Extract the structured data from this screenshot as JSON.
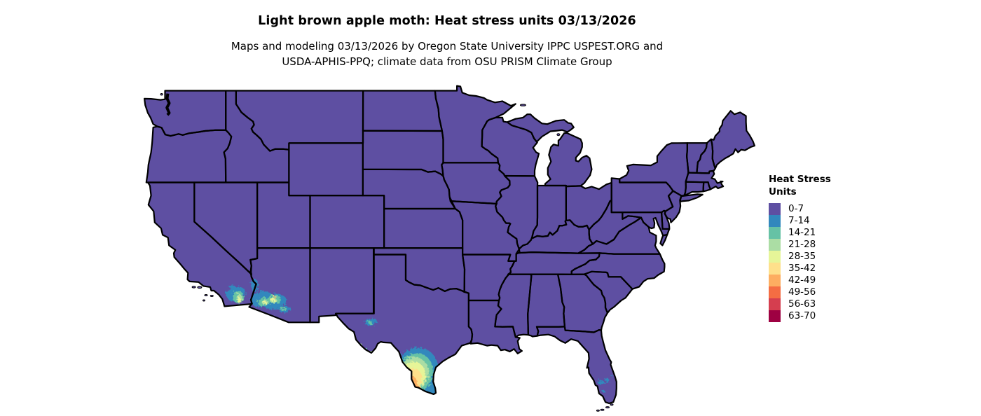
{
  "title": "Light brown apple moth: Heat stress units 03/13/2026",
  "subtitle": [
    "Maps and modeling 03/13/2026 by Oregon State University IPPC USPEST.ORG and",
    "USDA-APHIS-PPQ; climate data from OSU PRISM Climate Group"
  ],
  "legend": {
    "title_lines": [
      "Heat Stress",
      "Units"
    ],
    "items": [
      {
        "label": "0-7",
        "color": "#5e4fa2"
      },
      {
        "label": "7-14",
        "color": "#3288bd"
      },
      {
        "label": "14-21",
        "color": "#66c2a5"
      },
      {
        "label": "21-28",
        "color": "#abdda4"
      },
      {
        "label": "28-35",
        "color": "#e6f598"
      },
      {
        "label": "35-42",
        "color": "#fee08b"
      },
      {
        "label": "42-49",
        "color": "#fdae61"
      },
      {
        "label": "49-56",
        "color": "#f46d43"
      },
      {
        "label": "56-63",
        "color": "#d53e4f"
      },
      {
        "label": "63-70",
        "color": "#9e0142"
      }
    ]
  },
  "map": {
    "base_level_label": "0-7",
    "base_color": "#5e4fa2",
    "border_color": "#000000",
    "background": "#ffffff",
    "hotspots": [
      {
        "region": "se-california-low-desert",
        "level": 1,
        "lon": -116.05,
        "lat": 33.5,
        "rx": 14,
        "ry": 10,
        "rot": -20
      },
      {
        "region": "se-california-low-desert",
        "level": 1,
        "lon": -116.8,
        "lat": 33.6,
        "rx": 5,
        "ry": 3,
        "rot": 0
      },
      {
        "region": "se-california-low-desert",
        "level": 1,
        "lon": -116.45,
        "lat": 34.05,
        "rx": 4,
        "ry": 2.5,
        "rot": 0
      },
      {
        "region": "imperial-valley",
        "level": 2,
        "lon": -115.85,
        "lat": 33.25,
        "rx": 8,
        "ry": 9,
        "rot": -10
      },
      {
        "region": "imperial-valley",
        "level": 3,
        "lon": -115.75,
        "lat": 33.15,
        "rx": 4,
        "ry": 7,
        "rot": -8
      },
      {
        "region": "imperial-valley",
        "level": 4,
        "lon": -115.75,
        "lat": 33.0,
        "rx": 2.2,
        "ry": 4,
        "rot": 0
      },
      {
        "region": "southwest-arizona",
        "level": 1,
        "lon": -113.6,
        "lat": 33.1,
        "rx": 16,
        "ry": 11,
        "rot": -15
      },
      {
        "region": "south-central-arizona",
        "level": 1,
        "lon": -112.4,
        "lat": 32.9,
        "rx": 17,
        "ry": 11,
        "rot": -10
      },
      {
        "region": "lower-colorado-river",
        "level": 1,
        "lon": -114.3,
        "lat": 34.15,
        "rx": 5,
        "ry": 9,
        "rot": 0
      },
      {
        "region": "tucson-basin",
        "level": 1,
        "lon": -111.4,
        "lat": 32.3,
        "rx": 9,
        "ry": 4,
        "rot": -10
      },
      {
        "region": "southwest-arizona",
        "level": 2,
        "lon": -113.4,
        "lat": 32.9,
        "rx": 9,
        "ry": 6,
        "rot": -15
      },
      {
        "region": "south-central-arizona",
        "level": 2,
        "lon": -112.4,
        "lat": 33.1,
        "rx": 9,
        "ry": 6,
        "rot": 0
      },
      {
        "region": "tucson-basin",
        "level": 2,
        "lon": -111.6,
        "lat": 32.35,
        "rx": 5,
        "ry": 2.5,
        "rot": 0
      },
      {
        "region": "southwest-arizona",
        "level": 3,
        "lon": -113.3,
        "lat": 32.85,
        "rx": 5,
        "ry": 3.5,
        "rot": 0
      },
      {
        "region": "south-central-arizona",
        "level": 3,
        "lon": -112.5,
        "lat": 33.0,
        "rx": 5,
        "ry": 4,
        "rot": 0
      },
      {
        "region": "southwest-arizona",
        "level": 4,
        "lon": -113.3,
        "lat": 32.8,
        "rx": 2.5,
        "ry": 2,
        "rot": 0
      },
      {
        "region": "south-central-arizona",
        "level": 4,
        "lon": -112.6,
        "lat": 33.05,
        "rx": 3,
        "ry": 2.5,
        "rot": 0
      },
      {
        "region": "phoenix-core",
        "level": 5,
        "lon": -112.42,
        "lat": 33.3,
        "rx": 1.6,
        "ry": 2.2,
        "rot": 0
      },
      {
        "region": "phoenix-core",
        "level": 6,
        "lon": -112.42,
        "lat": 33.28,
        "rx": 1.1,
        "ry": 1.6,
        "rot": 0
      },
      {
        "region": "phoenix-core",
        "level": 7,
        "lon": -112.42,
        "lat": 33.22,
        "rx": 0.8,
        "ry": 1.0,
        "rot": 0
      },
      {
        "region": "south-texas",
        "level": 1,
        "lon": -98.9,
        "lat": 27.6,
        "rx": 30,
        "ry": 34,
        "rot": 12
      },
      {
        "region": "south-texas",
        "level": 1,
        "lon": -98.0,
        "lat": 26.5,
        "rx": 18,
        "ry": 14,
        "rot": 0
      },
      {
        "region": "south-texas",
        "level": 2,
        "lon": -99.05,
        "lat": 27.5,
        "rx": 25,
        "ry": 28,
        "rot": 12
      },
      {
        "region": "south-texas",
        "level": 3,
        "lon": -99.2,
        "lat": 27.45,
        "rx": 21,
        "ry": 23,
        "rot": 10
      },
      {
        "region": "south-texas",
        "level": 4,
        "lon": -99.25,
        "lat": 27.3,
        "rx": 17,
        "ry": 19,
        "rot": 8
      },
      {
        "region": "south-texas",
        "level": 5,
        "lon": -99.3,
        "lat": 27.0,
        "rx": 13,
        "ry": 15,
        "rot": 5
      },
      {
        "region": "rio-grande-valley",
        "level": 6,
        "lon": -99.4,
        "lat": 26.75,
        "rx": 7,
        "ry": 9,
        "rot": 0
      },
      {
        "region": "rio-grande-valley",
        "level": 6,
        "lon": -98.9,
        "lat": 26.35,
        "rx": 4,
        "ry": 3,
        "rot": 0
      },
      {
        "region": "laredo-core",
        "level": 7,
        "lon": -99.5,
        "lat": 26.8,
        "rx": 2.5,
        "ry": 4,
        "rot": 0
      },
      {
        "region": "laredo-core",
        "level": 7,
        "lon": -99.2,
        "lat": 26.55,
        "rx": 1.5,
        "ry": 1.5,
        "rot": 0
      },
      {
        "region": "west-texas-pecos",
        "level": 1,
        "lon": -103.3,
        "lat": 31.35,
        "rx": 9,
        "ry": 5,
        "rot": -10
      },
      {
        "region": "west-texas-pecos",
        "level": 2,
        "lon": -103.35,
        "lat": 31.3,
        "rx": 3,
        "ry": 2,
        "rot": 0
      },
      {
        "region": "big-bend-rio-grande",
        "level": 3,
        "lon": -104.35,
        "lat": 29.6,
        "rx": 3.5,
        "ry": 2.5,
        "rot": 0
      },
      {
        "region": "big-bend-rio-grande",
        "level": 5,
        "lon": -104.4,
        "lat": 29.55,
        "rx": 1.3,
        "ry": 1.3,
        "rot": 0
      },
      {
        "region": "big-bend-rio-grande",
        "level": 2,
        "lon": -103.75,
        "lat": 29.25,
        "rx": 3,
        "ry": 2,
        "rot": 0
      },
      {
        "region": "big-bend-rio-grande",
        "level": 3,
        "lon": -103.1,
        "lat": 29.05,
        "rx": 2,
        "ry": 1.5,
        "rot": 0
      },
      {
        "region": "south-florida",
        "level": 1,
        "lon": -81.55,
        "lat": 26.75,
        "rx": 5,
        "ry": 3.5,
        "rot": 0
      },
      {
        "region": "south-florida",
        "level": 1,
        "lon": -80.95,
        "lat": 26.9,
        "rx": 3.5,
        "ry": 2.5,
        "rot": 0
      },
      {
        "region": "south-florida",
        "level": 1,
        "lon": -81.25,
        "lat": 26.05,
        "rx": 2,
        "ry": 1.5,
        "rot": 0
      },
      {
        "region": "south-florida",
        "level": 1,
        "lon": -80.45,
        "lat": 27.2,
        "rx": 1.5,
        "ry": 1.5,
        "rot": 0
      }
    ]
  }
}
